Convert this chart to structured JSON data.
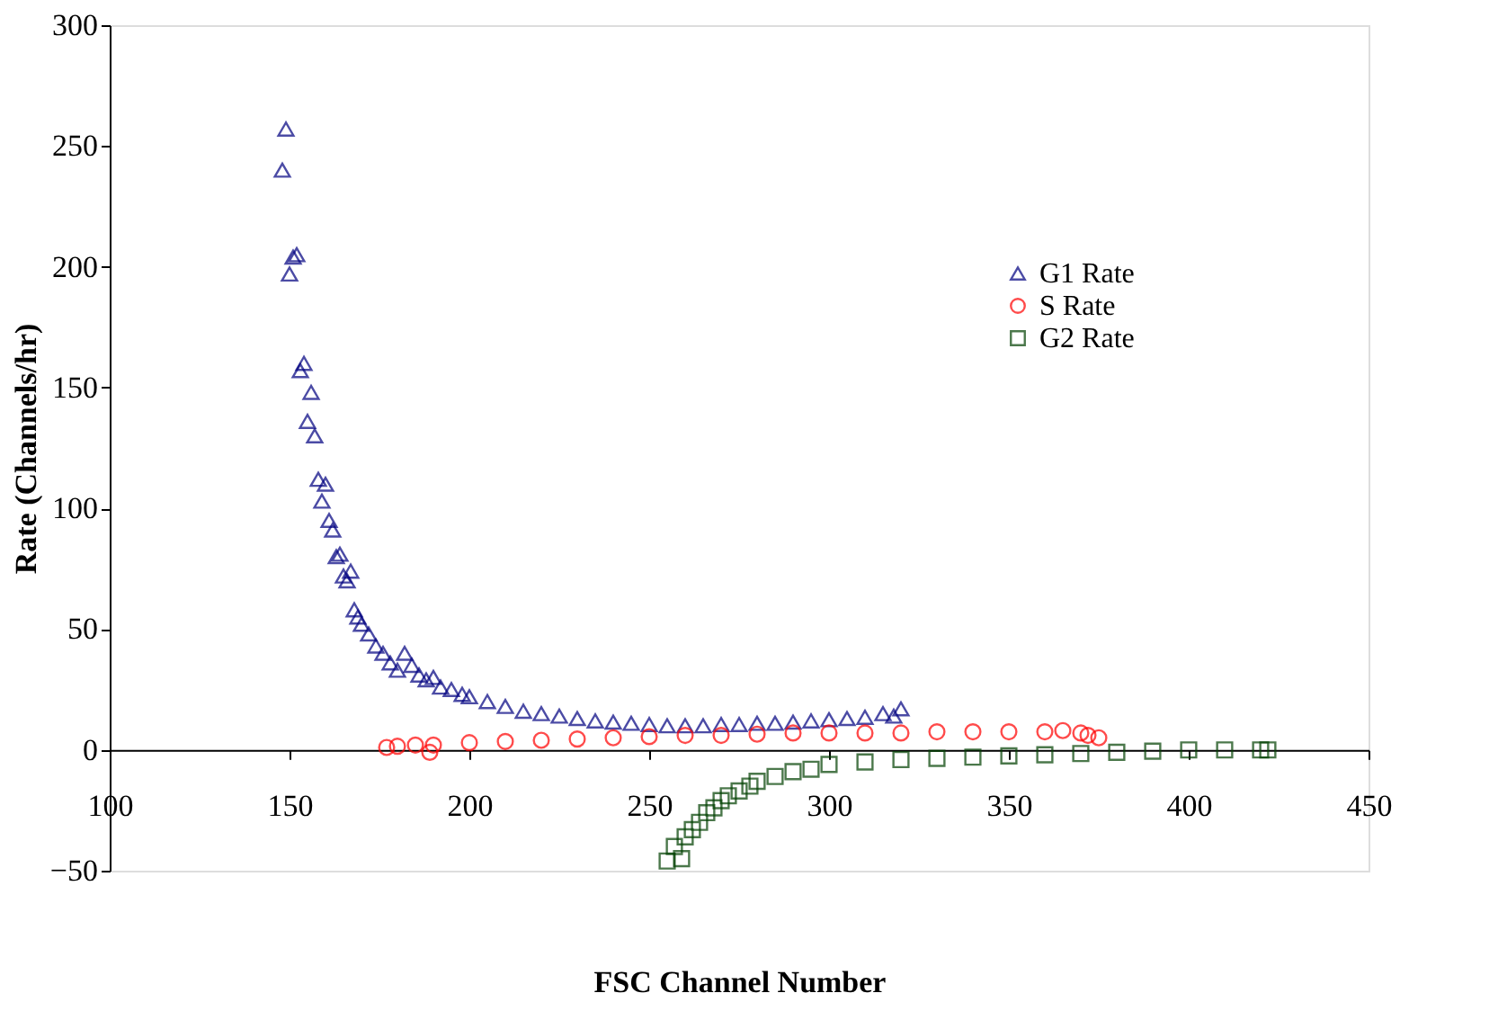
{
  "chart_data": {
    "type": "scatter",
    "xlabel": "FSC Channel Number",
    "ylabel": "Rate (Channels/hr)",
    "xlim": [
      100,
      450
    ],
    "xticks": [
      100,
      150,
      200,
      250,
      300,
      350,
      400,
      450
    ],
    "ylim": [
      -50,
      300
    ],
    "yticks": [
      -50,
      0,
      50,
      100,
      150,
      200,
      250,
      300
    ],
    "grid": false,
    "legend": "top right",
    "series": [
      {
        "name": "G1 Rate",
        "color": "#000080",
        "marker": "triangle",
        "x": [
          148,
          149,
          150,
          151,
          152,
          153,
          154,
          155,
          156,
          157,
          158,
          159,
          160,
          161,
          162,
          163,
          164,
          165,
          166,
          167,
          168,
          169,
          170,
          172,
          174,
          176,
          178,
          180,
          182,
          184,
          186,
          188,
          190,
          192,
          195,
          198,
          200,
          205,
          210,
          215,
          220,
          225,
          230,
          235,
          240,
          245,
          250,
          255,
          260,
          265,
          270,
          275,
          280,
          285,
          290,
          295,
          300,
          305,
          310,
          315,
          318,
          320
        ],
        "values": [
          240,
          257,
          197,
          204,
          205,
          157,
          160,
          136,
          148,
          130,
          112,
          103,
          110,
          95,
          91,
          80,
          81,
          72,
          70,
          74,
          58,
          55,
          52,
          48,
          43,
          40,
          36,
          33,
          40,
          35,
          31,
          29,
          30,
          26,
          25,
          23,
          22,
          20,
          18,
          16,
          15,
          14,
          13,
          12,
          11.5,
          11,
          10.5,
          10,
          10,
          10,
          10.5,
          10.5,
          11,
          11,
          11.5,
          12,
          12.5,
          13,
          13.5,
          15,
          14,
          17
        ]
      },
      {
        "name": "S Rate",
        "color": "#ff0000",
        "marker": "circle",
        "x": [
          177,
          180,
          185,
          189,
          190,
          200,
          210,
          220,
          230,
          240,
          250,
          260,
          270,
          280,
          290,
          300,
          310,
          320,
          330,
          340,
          350,
          360,
          365,
          370,
          372,
          375
        ],
        "values": [
          1,
          1.5,
          2,
          -1,
          2,
          3,
          3.5,
          4,
          4.5,
          5,
          5.5,
          6,
          6,
          6.5,
          7,
          7,
          7,
          7,
          7.5,
          7.5,
          7.5,
          7.5,
          8,
          7,
          6,
          5
        ]
      },
      {
        "name": "G2 Rate",
        "color": "#004000",
        "marker": "square",
        "x": [
          255,
          257,
          259,
          260,
          262,
          264,
          266,
          268,
          270,
          272,
          275,
          278,
          280,
          285,
          290,
          295,
          300,
          310,
          320,
          330,
          340,
          350,
          360,
          370,
          380,
          390,
          400,
          410,
          420,
          422
        ],
        "values": [
          -46,
          -40,
          -45,
          -36,
          -33,
          -30,
          -26,
          -24,
          -21,
          -19,
          -17,
          -15,
          -13,
          -11,
          -9,
          -8,
          -6,
          -5,
          -4,
          -3.5,
          -3,
          -2.5,
          -2,
          -1.5,
          -1,
          -0.5,
          0,
          0,
          0,
          0
        ]
      }
    ]
  }
}
